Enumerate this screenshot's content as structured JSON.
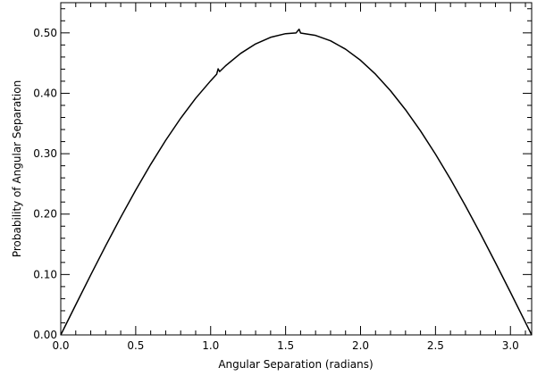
{
  "chart_data": {
    "type": "line",
    "title": "",
    "xlabel": "Angular Separation (radians)",
    "ylabel": "Probability of Angular Separation",
    "xlim": [
      0,
      3.1416
    ],
    "ylim": [
      0,
      0.55
    ],
    "x_ticks": [
      0.0,
      0.5,
      1.0,
      1.5,
      2.0,
      2.5,
      3.0
    ],
    "x_tick_labels": [
      "0.0",
      "0.5",
      "1.0",
      "1.5",
      "2.0",
      "2.5",
      "3.0"
    ],
    "y_ticks": [
      0.0,
      0.1,
      0.2,
      0.3,
      0.4,
      0.5
    ],
    "y_tick_labels": [
      "0.00",
      "0.10",
      "0.20",
      "0.30",
      "0.40",
      "0.50"
    ],
    "grid": false,
    "legend": "none",
    "line_color": "#000000",
    "series": [
      {
        "x": [
          0.0,
          0.1,
          0.2,
          0.3,
          0.4,
          0.5,
          0.6,
          0.7,
          0.8,
          0.9,
          1.0,
          1.04,
          1.05,
          1.06,
          1.1,
          1.2,
          1.3,
          1.4,
          1.5,
          1.57,
          1.59,
          1.6,
          1.7,
          1.8,
          1.9,
          2.0,
          2.1,
          2.2,
          2.3,
          2.4,
          2.5,
          2.6,
          2.7,
          2.8,
          2.9,
          3.0,
          3.1,
          3.1416
        ],
        "y": [
          0.0,
          0.0499,
          0.0993,
          0.1478,
          0.1947,
          0.2397,
          0.2823,
          0.3221,
          0.3587,
          0.3917,
          0.4207,
          0.4315,
          0.4405,
          0.436,
          0.4456,
          0.466,
          0.4818,
          0.4927,
          0.4987,
          0.5,
          0.506,
          0.4998,
          0.4958,
          0.4869,
          0.473,
          0.4546,
          0.4316,
          0.4042,
          0.3728,
          0.3377,
          0.2992,
          0.2578,
          0.2137,
          0.1675,
          0.1196,
          0.0706,
          0.0208,
          0.0
        ]
      }
    ]
  }
}
